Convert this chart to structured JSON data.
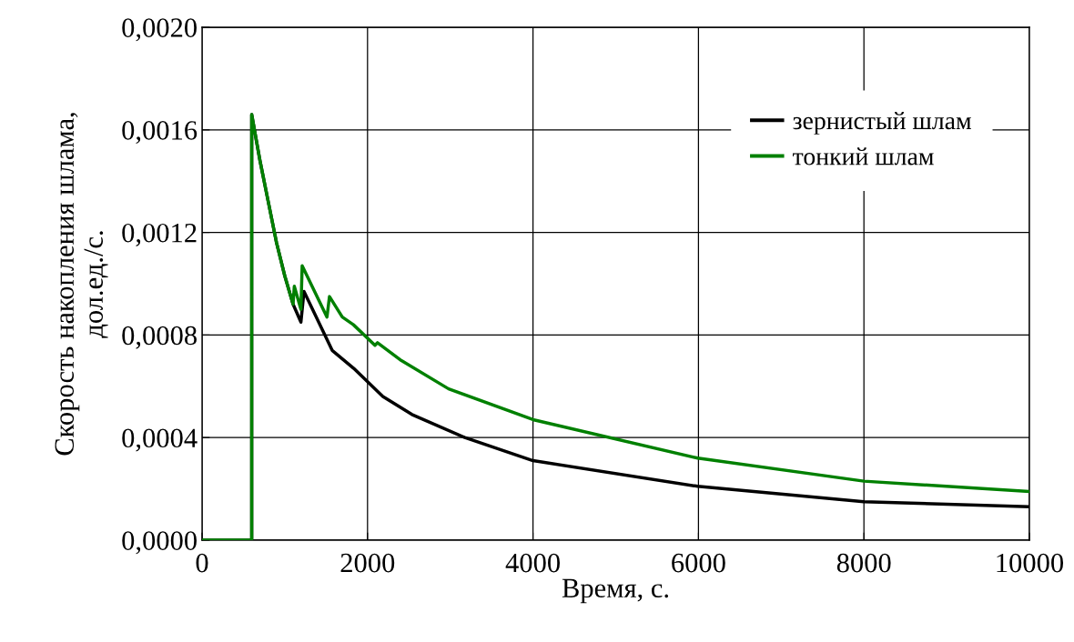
{
  "chart_data": {
    "type": "line",
    "xlabel": "Время, с.",
    "ylabel": "Скорость накопления шлама,\nдол.ед./с.",
    "xlim": [
      0,
      10000
    ],
    "xticks": [
      0,
      2000,
      4000,
      6000,
      8000,
      10000
    ],
    "ylim": [
      0,
      0.002
    ],
    "yticks": [
      {
        "value": 0,
        "label": "0,0000"
      },
      {
        "value": 0.0004,
        "label": "0,0004"
      },
      {
        "value": 0.0008,
        "label": "0,0008"
      },
      {
        "value": 0.0012,
        "label": "0,0012"
      },
      {
        "value": 0.0016,
        "label": "0,0016"
      },
      {
        "value": 0.002,
        "label": "0,0020"
      }
    ],
    "grid": true,
    "legend": "top right",
    "marker": "none",
    "line_style": "solid",
    "series": [
      {
        "name": "зернистый шлам",
        "color": "#000000",
        "x": [
          0,
          600,
          600,
          700,
          800,
          900,
          1000,
          1100,
          1195,
          1232,
          1573,
          1833,
          2185,
          2537,
          3176,
          4000,
          5990,
          8000,
          10000
        ],
        "values": [
          0,
          0,
          0.00166,
          0.00148,
          0.00132,
          0.00116,
          0.00103,
          0.00092,
          0.00085,
          0.00097,
          0.00074,
          0.00067,
          0.00056,
          0.00049,
          0.0004,
          0.00031,
          0.00021,
          0.00015,
          0.00013
        ]
      },
      {
        "name": "тонкий шлам",
        "color": "#008000",
        "x": [
          0,
          600,
          600,
          700,
          800,
          900,
          1000,
          1100,
          1115,
          1195,
          1210,
          1510,
          1540,
          1695,
          1830,
          2090,
          2120,
          2410,
          2980,
          4000,
          5990,
          8000,
          10000
        ],
        "values": [
          0,
          0,
          0.00166,
          0.00148,
          0.00132,
          0.00116,
          0.00103,
          0.00092,
          0.00099,
          0.0009,
          0.00107,
          0.00087,
          0.00095,
          0.00087,
          0.00084,
          0.00076,
          0.00077,
          0.0007,
          0.00059,
          0.00047,
          0.00032,
          0.00023,
          0.00019
        ]
      }
    ]
  }
}
